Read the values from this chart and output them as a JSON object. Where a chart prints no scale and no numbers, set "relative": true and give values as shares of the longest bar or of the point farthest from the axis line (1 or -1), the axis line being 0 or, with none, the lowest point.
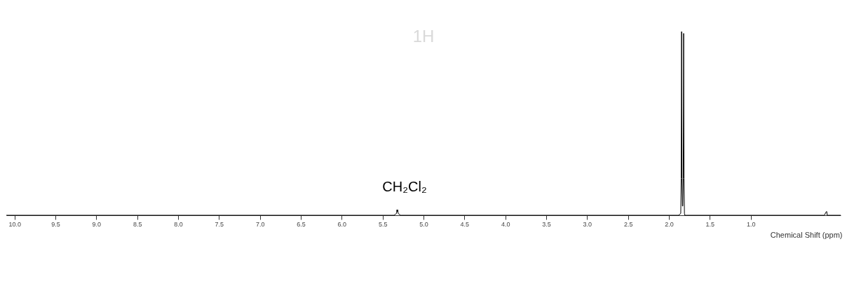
{
  "chart_data": {
    "type": "line",
    "title": "1H",
    "xlabel": "Chemical Shift (ppm)",
    "relative": true,
    "x": [
      10.1,
      5.36,
      5.33,
      5.325,
      5.32,
      5.315,
      5.31,
      5.28,
      1.88,
      1.855,
      1.85,
      1.845,
      1.84,
      1.835,
      1.83,
      1.825,
      1.82,
      1.815,
      1.81,
      1.805,
      1.78,
      0.1,
      0.075,
      0.07,
      0.065,
      -0.1
    ],
    "series": [
      {
        "color": "#000000",
        "values": [
          0,
          0,
          0.01,
          0.03,
          0.02,
          0.03,
          0.01,
          0,
          0,
          0.01,
          0.2,
          1,
          0.2,
          0.05,
          0.05,
          0.2,
          0.99,
          0.2,
          0.01,
          0,
          0,
          0,
          0.02,
          0.02,
          0,
          0
        ]
      }
    ],
    "xlim": [
      10.1,
      -0.1
    ],
    "xticks": [
      {
        "value": 10,
        "label": "10.0"
      },
      9.5,
      {
        "value": 9,
        "label": "9.0"
      },
      8.5,
      {
        "value": 8,
        "label": "8.0"
      },
      7.5,
      {
        "value": 7,
        "label": "7.0"
      },
      6.5,
      {
        "value": 6,
        "label": "6.0"
      },
      5.5,
      {
        "value": 5,
        "label": "5.0"
      },
      4.5,
      {
        "value": 4,
        "label": "4.0"
      },
      3.5,
      {
        "value": 3,
        "label": "3.0"
      },
      2.5,
      {
        "value": 2,
        "label": "2.0"
      },
      1.5,
      {
        "value": 1,
        "label": "1.0"
      }
    ],
    "annotations": [
      "CH₂Cl₂"
    ],
    "grid": false,
    "line_style": "solid",
    "marker": "none"
  }
}
